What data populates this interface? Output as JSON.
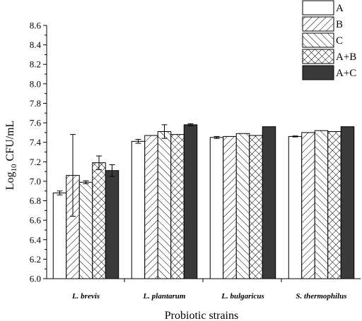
{
  "chart_data": {
    "type": "bar",
    "xlabel": "Probiotic strains",
    "ylabel_main": "Log",
    "ylabel_sub": "10",
    "ylabel_rest": " CFU/mL",
    "ylim": [
      6.0,
      8.6
    ],
    "yticks": [
      "6.0",
      "6.2",
      "6.4",
      "6.6",
      "6.8",
      "7.0",
      "7.2",
      "7.4",
      "7.6",
      "7.8",
      "8.0",
      "8.2",
      "8.4",
      "8.6"
    ],
    "categories": [
      "L. brevis",
      "L. plantarum",
      "L. bulgaricus",
      "S. thermophilus"
    ],
    "series": [
      {
        "name": "A",
        "values": [
          6.88,
          7.41,
          7.45,
          7.46
        ],
        "errors": [
          0.02,
          0.02,
          0.01,
          0.005
        ],
        "pattern": "none"
      },
      {
        "name": "B",
        "values": [
          7.06,
          7.47,
          7.46,
          7.5
        ],
        "errors": [
          0.42,
          0.0,
          0.0,
          0.0
        ],
        "pattern": "forward-diagonal"
      },
      {
        "name": "C",
        "values": [
          6.99,
          7.51,
          7.49,
          7.52
        ],
        "errors": [
          0.015,
          0.07,
          0.0,
          0.0
        ],
        "pattern": "backward-diagonal"
      },
      {
        "name": "A+B",
        "values": [
          7.19,
          7.48,
          7.47,
          7.51
        ],
        "errors": [
          0.07,
          0.0,
          0.0,
          0.0
        ],
        "pattern": "crosshatch"
      },
      {
        "name": "A+C",
        "values": [
          7.11,
          7.58,
          7.56,
          7.56
        ],
        "errors": [
          0.06,
          0.01,
          0.0,
          0.0
        ],
        "pattern": "solid"
      }
    ],
    "colors": {
      "bar_fill": "#ffffff",
      "solid_fill": "#3a3a3a",
      "stroke": "#000000"
    },
    "legend_position": "top-right",
    "grid": false
  }
}
